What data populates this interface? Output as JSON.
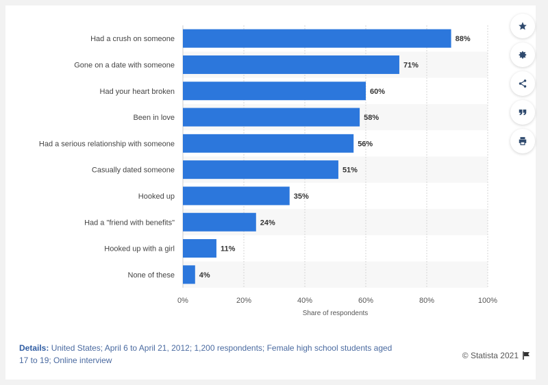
{
  "chart_data": {
    "type": "bar",
    "orientation": "horizontal",
    "categories": [
      "Had a crush on someone",
      "Gone on a date with someone",
      "Had your heart broken",
      "Been in love",
      "Had a serious relationship with someone",
      "Casually dated someone",
      "Hooked up",
      "Had a \"friend with benefits\"",
      "Hooked up with a girl",
      "None of these"
    ],
    "values": [
      88,
      71,
      60,
      58,
      56,
      51,
      35,
      24,
      11,
      4
    ],
    "value_labels": [
      "88%",
      "71%",
      "60%",
      "58%",
      "56%",
      "51%",
      "35%",
      "24%",
      "11%",
      "4%"
    ],
    "xlabel": "Share of respondents",
    "ylabel": "",
    "xlim": [
      0,
      100
    ],
    "xticks": [
      0,
      20,
      40,
      60,
      80,
      100
    ],
    "xtick_labels": [
      "0%",
      "20%",
      "40%",
      "60%",
      "80%",
      "100%"
    ],
    "bar_color": "#2c77dc",
    "grid": true,
    "legend": false
  },
  "footer": {
    "details_label": "Details:",
    "details_text": "United States; April 6 to April 21, 2012; 1,200 respondents; Female high school students aged 17 to 19; Online interview",
    "copyright": "© Statista 2021"
  },
  "toolbar": {
    "icons": [
      "star-icon",
      "gear-icon",
      "share-icon",
      "quote-icon",
      "print-icon"
    ]
  },
  "colors": {
    "accent": "#2c77dc",
    "icon": "#2f4a6e",
    "details_label": "#2f5da3"
  }
}
